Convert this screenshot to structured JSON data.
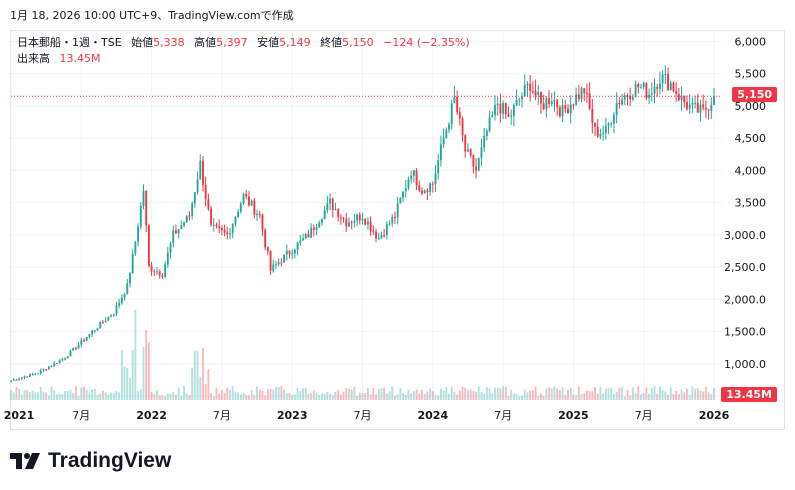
{
  "caption": "1月 18, 2026 10:00 UTC+9、TradingView.comで作成",
  "legend": {
    "symbol": "日本郵船・1週・TSE",
    "open_label": "始値",
    "open": "5,338",
    "high_label": "高値",
    "high": "5,397",
    "low_label": "安値",
    "low": "5,149",
    "close_label": "終値",
    "close": "5,150",
    "change": "−124 (−2.35%)",
    "volume_label": "出来高",
    "volume": "13.45M"
  },
  "price_tag": "5,150",
  "volume_tag": "13.45M",
  "brand": "TradingView",
  "colors": {
    "up": "#26a69a",
    "down": "#f23645",
    "text": "#131722",
    "grid": "#f0f3fa"
  },
  "chart_data": {
    "type": "candlestick",
    "ylim": [
      500,
      6100
    ],
    "y_ticks": [
      "6,000",
      "5,500",
      "5,000",
      "4,500",
      "4,000",
      "3,500",
      "3,000.0",
      "2,500.0",
      "2,000.0",
      "1,500.0",
      "1,000.0",
      "500.0"
    ],
    "y_tick_values": [
      6000,
      5500,
      5000,
      4500,
      4000,
      3500,
      3000,
      2500,
      2000,
      1500,
      1000,
      500
    ],
    "x_ticks": [
      "2021",
      "7月",
      "2022",
      "7月",
      "2023",
      "7月",
      "2024",
      "7月",
      "2025",
      "7月",
      "2026"
    ],
    "x_tick_positions": [
      0,
      26,
      52,
      78,
      104,
      130,
      156,
      182,
      208,
      234,
      260
    ],
    "last_price": 5150,
    "weekly_close_anchors": [
      [
        0,
        740
      ],
      [
        10,
        860
      ],
      [
        20,
        1100
      ],
      [
        30,
        1500
      ],
      [
        38,
        1800
      ],
      [
        43,
        2200
      ],
      [
        46,
        2900
      ],
      [
        49,
        3700
      ],
      [
        51,
        2500
      ],
      [
        56,
        2400
      ],
      [
        60,
        3000
      ],
      [
        66,
        3300
      ],
      [
        70,
        4100
      ],
      [
        74,
        3100
      ],
      [
        80,
        3000
      ],
      [
        86,
        3600
      ],
      [
        92,
        3300
      ],
      [
        96,
        2450
      ],
      [
        102,
        2700
      ],
      [
        110,
        3000
      ],
      [
        118,
        3500
      ],
      [
        124,
        3200
      ],
      [
        130,
        3300
      ],
      [
        136,
        2950
      ],
      [
        142,
        3300
      ],
      [
        148,
        4000
      ],
      [
        152,
        3700
      ],
      [
        156,
        3800
      ],
      [
        160,
        4500
      ],
      [
        164,
        5100
      ],
      [
        168,
        4300
      ],
      [
        172,
        4000
      ],
      [
        176,
        4600
      ],
      [
        180,
        5050
      ],
      [
        184,
        4800
      ],
      [
        188,
        5100
      ],
      [
        192,
        5350
      ],
      [
        196,
        5000
      ],
      [
        200,
        5150
      ],
      [
        204,
        4900
      ],
      [
        208,
        5100
      ],
      [
        212,
        5250
      ],
      [
        216,
        4600
      ],
      [
        220,
        4600
      ],
      [
        224,
        5050
      ],
      [
        228,
        5200
      ],
      [
        232,
        5300
      ],
      [
        236,
        5200
      ],
      [
        240,
        5450
      ],
      [
        244,
        5350
      ],
      [
        248,
        5100
      ],
      [
        252,
        4950
      ],
      [
        256,
        4900
      ],
      [
        260,
        5150
      ]
    ]
  }
}
